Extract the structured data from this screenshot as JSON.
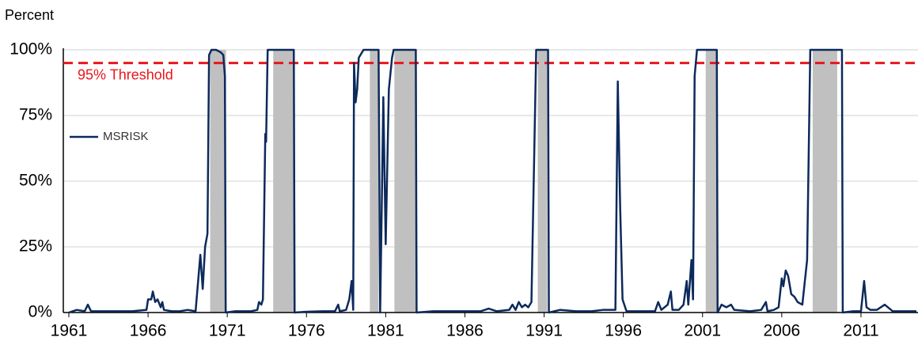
{
  "chart_data": {
    "type": "line",
    "y_label": "Percent",
    "xlim": [
      1961,
      2014.6
    ],
    "ylim": [
      0,
      100
    ],
    "xticks": [
      1961,
      1966,
      1971,
      1976,
      1981,
      1986,
      1991,
      1996,
      2001,
      2006,
      2011
    ],
    "yticks": [
      {
        "value": 0,
        "label": "0%"
      },
      {
        "value": 25,
        "label": "25%"
      },
      {
        "value": 50,
        "label": "50%"
      },
      {
        "value": 75,
        "label": "75%"
      },
      {
        "value": 100,
        "label": "100%"
      }
    ],
    "grid": true,
    "legend": "left",
    "threshold": {
      "value": 95,
      "label": "95% Threshold",
      "color": "#e8171c"
    },
    "shaded_regions": {
      "color": "#c0c0c0",
      "ranges": [
        [
          1969.92,
          1970.92
        ],
        [
          1973.9,
          1975.2
        ],
        [
          1980.0,
          1980.55
        ],
        [
          1981.55,
          1982.9
        ],
        [
          1990.6,
          1991.2
        ],
        [
          2001.2,
          2001.9
        ],
        [
          2007.95,
          2009.5
        ]
      ]
    },
    "series": [
      {
        "name": "MSRISK",
        "color": "#0d2a5c",
        "x": [
          1961.0,
          1961.5,
          1962.0,
          1962.2,
          1962.4,
          1963.0,
          1964.0,
          1965.0,
          1965.9,
          1966.0,
          1966.2,
          1966.3,
          1966.45,
          1966.6,
          1966.8,
          1966.9,
          1967.0,
          1967.5,
          1968.0,
          1968.5,
          1969.0,
          1969.3,
          1969.45,
          1969.6,
          1969.75,
          1969.85,
          1970.0,
          1970.3,
          1970.6,
          1970.75,
          1970.85,
          1970.9,
          1971.5,
          1972.0,
          1972.5,
          1972.9,
          1973.0,
          1973.15,
          1973.25,
          1973.4,
          1973.45,
          1973.55,
          1975.2,
          1975.25,
          1976.0,
          1977.0,
          1977.8,
          1978.0,
          1978.1,
          1978.5,
          1978.7,
          1978.85,
          1978.95,
          1979.0,
          1979.1,
          1979.2,
          1979.3,
          1979.6,
          1980.5,
          1980.55,
          1980.65,
          1980.75,
          1980.85,
          1981.0,
          1981.2,
          1981.4,
          1981.5,
          1982.9,
          1982.95,
          1984.0,
          1986.0,
          1987.0,
          1987.5,
          1988.0,
          1988.8,
          1989.0,
          1989.2,
          1989.4,
          1989.6,
          1989.8,
          1990.0,
          1990.2,
          1990.5,
          1991.25,
          1991.3,
          1992.0,
          1993.0,
          1994.0,
          1994.7,
          1995.3,
          1995.5,
          1995.65,
          1995.8,
          1995.95,
          1996.2,
          1997.0,
          1998.0,
          1998.2,
          1998.4,
          1998.8,
          1999.0,
          1999.1,
          1999.5,
          1999.8,
          2000.0,
          2000.1,
          2000.3,
          2000.4,
          2000.5,
          2000.65,
          2001.9,
          2001.95,
          2002.2,
          2002.5,
          2002.8,
          2003.0,
          2004.0,
          2004.7,
          2005.0,
          2005.1,
          2005.5,
          2005.8,
          2006.0,
          2006.1,
          2006.25,
          2006.4,
          2006.6,
          2006.8,
          2007.0,
          2007.3,
          2007.6,
          2007.8,
          2009.8,
          2009.85,
          2010.5,
          2011.0,
          2011.2,
          2011.35,
          2011.6,
          2012.0,
          2012.5,
          2013.0,
          2014.0,
          2014.5
        ],
        "values": [
          0,
          1,
          0.5,
          3,
          0.5,
          0.5,
          0.5,
          0.5,
          1,
          5,
          5,
          8,
          4,
          5,
          2,
          4,
          1,
          0.5,
          0.5,
          1,
          0.5,
          22,
          9,
          25,
          30,
          98,
          100,
          100,
          99,
          98,
          90,
          0,
          0.5,
          0.5,
          0.5,
          1,
          4,
          3,
          5,
          68,
          65,
          100,
          100,
          0,
          0.3,
          0.5,
          0.5,
          3,
          0.5,
          1,
          5,
          12,
          1,
          95,
          80,
          85,
          97,
          100,
          100,
          100,
          0,
          40,
          82,
          26,
          85,
          97,
          100,
          100,
          0,
          0.5,
          0.5,
          0.5,
          1.5,
          0.5,
          1,
          3,
          1,
          4,
          2,
          3,
          2,
          4,
          100,
          100,
          0,
          1,
          0.5,
          0.5,
          1,
          1,
          1,
          88,
          40,
          5,
          0.5,
          0.5,
          0.5,
          4,
          1,
          3,
          8,
          1,
          1,
          3,
          12,
          3,
          20,
          5,
          90,
          100,
          100,
          0,
          3,
          2,
          3,
          1,
          0.5,
          1,
          4,
          0.5,
          1,
          2,
          13,
          10,
          16,
          14,
          7,
          6,
          4,
          3,
          20,
          100,
          100,
          0,
          0.5,
          0.5,
          12,
          2,
          1,
          1,
          3,
          0.5,
          0.5,
          0.5
        ]
      }
    ]
  }
}
